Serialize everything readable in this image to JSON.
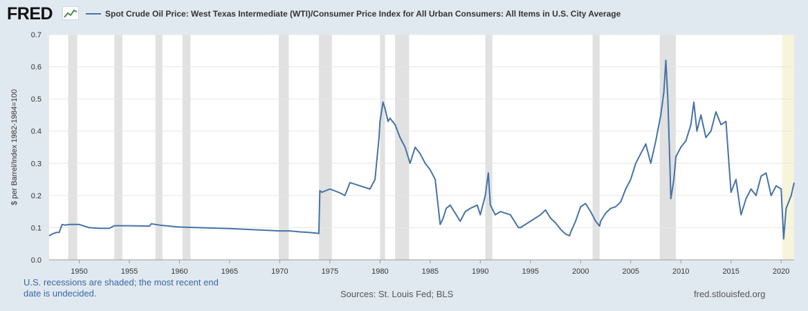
{
  "header": {
    "logo_text": "FRED",
    "logo_icon": "line-chart-icon"
  },
  "chart_data": {
    "type": "line",
    "title": "Spot Crude Oil Price: West Texas Intermediate (WTI)/Consumer Price Index for All Urban Consumers: All Items in U.S. City Average",
    "xlabel": "",
    "ylabel": "$ per Barrel/Index 1982-1984=100",
    "xlim": [
      1947,
      2021.3
    ],
    "ylim": [
      0,
      0.7
    ],
    "x_ticks": [
      "1950",
      "1955",
      "1960",
      "1965",
      "1970",
      "1975",
      "1980",
      "1985",
      "1990",
      "1995",
      "2000",
      "2005",
      "2010",
      "2015",
      "2020"
    ],
    "y_ticks": [
      "0.0",
      "0.1",
      "0.2",
      "0.3",
      "0.4",
      "0.5",
      "0.6",
      "0.7"
    ],
    "grid": true,
    "recessions": [
      [
        1948.9,
        1949.8
      ],
      [
        1953.5,
        1954.3
      ],
      [
        1957.6,
        1958.3
      ],
      [
        1960.3,
        1961.1
      ],
      [
        1969.9,
        1970.9
      ],
      [
        1973.9,
        1975.2
      ],
      [
        1980.0,
        1980.5
      ],
      [
        1981.5,
        1982.9
      ],
      [
        1990.5,
        1991.2
      ],
      [
        2001.2,
        2001.9
      ],
      [
        2007.9,
        2009.5
      ],
      [
        2020.1,
        2021.3
      ]
    ],
    "recession_colors": {
      "shade": "#e1e1e1",
      "undecided": "#f7f4dc"
    },
    "series": [
      {
        "name": "Spot Crude Oil Price: West Texas Intermediate (WTI)/Consumer Price Index for All Urban Consumers: All Items in U.S. City Average",
        "color": "#4572a7",
        "x": [
          1947.0,
          1947.3,
          1947.7,
          1948.0,
          1948.3,
          1948.6,
          1949.0,
          1950.0,
          1951.0,
          1952.0,
          1953.0,
          1953.5,
          1955.0,
          1957.0,
          1957.2,
          1958.0,
          1960.0,
          1965.0,
          1968.0,
          1970.0,
          1971.0,
          1972.0,
          1973.0,
          1973.9,
          1974.0,
          1974.2,
          1975.0,
          1976.0,
          1976.5,
          1977.0,
          1978.0,
          1979.0,
          1979.5,
          1979.9,
          1980.0,
          1980.3,
          1980.5,
          1980.8,
          1981.0,
          1981.5,
          1982.0,
          1982.5,
          1983.0,
          1983.5,
          1984.0,
          1984.5,
          1985.0,
          1985.5,
          1986.0,
          1986.3,
          1986.6,
          1987.0,
          1988.0,
          1988.5,
          1989.0,
          1989.7,
          1990.0,
          1990.5,
          1990.8,
          1991.0,
          1991.5,
          1992.0,
          1993.0,
          1993.8,
          1994.0,
          1995.0,
          1996.0,
          1996.5,
          1997.0,
          1997.5,
          1998.0,
          1998.5,
          1998.9,
          1999.0,
          1999.5,
          2000.0,
          2000.5,
          2001.0,
          2001.5,
          2001.9,
          2002.0,
          2002.5,
          2003.0,
          2003.5,
          2004.0,
          2004.5,
          2005.0,
          2005.5,
          2006.0,
          2006.5,
          2007.0,
          2007.5,
          2008.0,
          2008.3,
          2008.5,
          2008.7,
          2008.9,
          2009.0,
          2009.3,
          2009.5,
          2010.0,
          2010.5,
          2011.0,
          2011.3,
          2011.6,
          2012.0,
          2012.5,
          2013.0,
          2013.5,
          2014.0,
          2014.5,
          2015.0,
          2015.5,
          2016.0,
          2016.5,
          2017.0,
          2017.5,
          2018.0,
          2018.5,
          2019.0,
          2019.5,
          2020.0,
          2020.25,
          2020.5,
          2021.0,
          2021.3
        ],
        "values": [
          0.075,
          0.08,
          0.085,
          0.085,
          0.11,
          0.108,
          0.11,
          0.11,
          0.1,
          0.098,
          0.098,
          0.106,
          0.106,
          0.105,
          0.112,
          0.108,
          0.102,
          0.097,
          0.093,
          0.09,
          0.09,
          0.087,
          0.085,
          0.082,
          0.215,
          0.21,
          0.22,
          0.208,
          0.2,
          0.24,
          0.23,
          0.22,
          0.25,
          0.38,
          0.43,
          0.49,
          0.47,
          0.43,
          0.44,
          0.42,
          0.38,
          0.35,
          0.3,
          0.35,
          0.33,
          0.3,
          0.28,
          0.25,
          0.11,
          0.13,
          0.16,
          0.17,
          0.12,
          0.15,
          0.16,
          0.17,
          0.14,
          0.2,
          0.27,
          0.17,
          0.14,
          0.15,
          0.14,
          0.1,
          0.1,
          0.12,
          0.14,
          0.155,
          0.13,
          0.115,
          0.095,
          0.08,
          0.075,
          0.085,
          0.12,
          0.165,
          0.175,
          0.15,
          0.12,
          0.105,
          0.12,
          0.145,
          0.16,
          0.165,
          0.18,
          0.22,
          0.25,
          0.3,
          0.33,
          0.36,
          0.3,
          0.37,
          0.45,
          0.52,
          0.62,
          0.5,
          0.3,
          0.19,
          0.25,
          0.32,
          0.35,
          0.37,
          0.42,
          0.49,
          0.4,
          0.45,
          0.38,
          0.4,
          0.46,
          0.42,
          0.43,
          0.21,
          0.25,
          0.14,
          0.19,
          0.22,
          0.2,
          0.26,
          0.27,
          0.2,
          0.23,
          0.22,
          0.065,
          0.16,
          0.2,
          0.24
        ]
      }
    ]
  },
  "footer": {
    "note": "U.S. recessions are shaded; the most recent end date is undecided.",
    "sources": "Sources: St. Louis Fed; BLS",
    "site": "fred.stlouisfed.org"
  }
}
